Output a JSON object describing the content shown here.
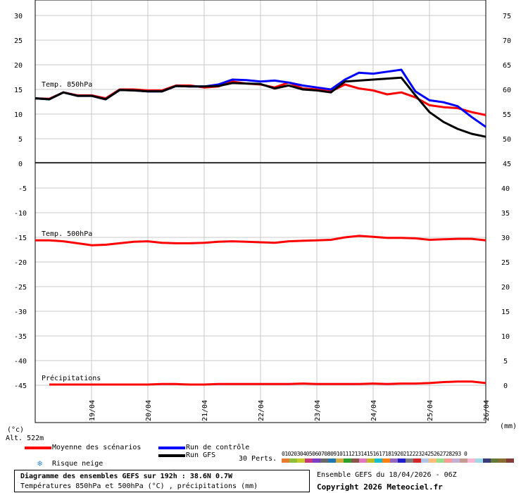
{
  "chart_data": [
    {
      "type": "line",
      "panel": "temp850",
      "title": "Temp. 850hPa",
      "ylim": [
        0,
        30
      ],
      "yticks_left": [
        0,
        5,
        10,
        15,
        20,
        25,
        30
      ],
      "yticks_right": [
        45,
        50,
        55,
        60,
        65,
        70,
        75
      ],
      "x": [
        0,
        6,
        12,
        18,
        24,
        30,
        36,
        42,
        48,
        54,
        60,
        66,
        72,
        78,
        84,
        90,
        96,
        102,
        108,
        114,
        120,
        126,
        132,
        138,
        144,
        150,
        156,
        162,
        168,
        174,
        180,
        186,
        192
      ],
      "series": [
        {
          "name": "Moyenne des scénarios",
          "color": "#ff0000",
          "width": 3,
          "values": [
            13.2,
            13.1,
            14.4,
            13.8,
            13.8,
            13.2,
            15.0,
            15.0,
            14.8,
            14.8,
            15.8,
            15.8,
            15.4,
            15.6,
            16.6,
            16.2,
            16.0,
            15.4,
            16.4,
            15.2,
            15.0,
            14.6,
            16.0,
            15.2,
            14.8,
            14.0,
            14.4,
            13.4,
            11.8,
            11.4,
            11.2,
            10.4,
            9.8
          ]
        },
        {
          "name": "Run de contrôle",
          "color": "#0000ff",
          "width": 3,
          "values": [
            13.2,
            13.0,
            14.4,
            13.7,
            13.7,
            13.0,
            14.9,
            14.8,
            14.6,
            14.6,
            15.7,
            15.6,
            15.6,
            16.0,
            17.0,
            16.9,
            16.6,
            16.8,
            16.4,
            15.8,
            15.4,
            15.0,
            17.0,
            18.4,
            18.2,
            18.6,
            19.0,
            14.6,
            12.8,
            12.4,
            11.6,
            9.4,
            7.4
          ]
        },
        {
          "name": "Run GFS",
          "color": "#000000",
          "width": 3,
          "values": [
            13.2,
            13.0,
            14.4,
            13.7,
            13.7,
            13.0,
            14.9,
            14.8,
            14.6,
            14.6,
            15.7,
            15.6,
            15.6,
            15.7,
            16.3,
            16.2,
            16.1,
            15.2,
            15.8,
            15.0,
            14.8,
            14.4,
            16.6,
            16.8,
            17.0,
            17.2,
            17.4,
            13.8,
            10.4,
            8.4,
            7.0,
            6.0,
            5.4
          ]
        }
      ]
    },
    {
      "type": "line",
      "panel": "temp500",
      "title": "Temp. 500hPa",
      "ylim": [
        -15,
        0
      ],
      "yticks_left": [
        0,
        -5,
        -10,
        -15
      ],
      "yticks_right": [
        45,
        40,
        35,
        30
      ],
      "x": [
        0,
        6,
        12,
        18,
        24,
        30,
        36,
        42,
        48,
        54,
        60,
        66,
        72,
        78,
        84,
        90,
        96,
        102,
        108,
        114,
        120,
        126,
        132,
        138,
        144,
        150,
        156,
        162,
        168,
        174,
        180,
        186,
        192
      ],
      "series": [
        {
          "name": "Moyenne des scénarios",
          "color": "#ff0000",
          "width": 3,
          "values": [
            -15.6,
            -15.6,
            -15.8,
            -16.2,
            -16.6,
            -16.5,
            -16.2,
            -15.9,
            -15.8,
            -16.1,
            -16.2,
            -16.2,
            -16.1,
            -15.9,
            -15.8,
            -15.9,
            -16.0,
            -16.1,
            -15.8,
            -15.7,
            -15.6,
            -15.5,
            -15.0,
            -14.7,
            -14.9,
            -15.1,
            -15.1,
            -15.2,
            -15.5,
            -15.4,
            -15.3,
            -15.3,
            -15.6
          ]
        }
      ]
    },
    {
      "type": "line",
      "panel": "precip",
      "title": "Précipitations",
      "ylim": [
        0,
        15
      ],
      "yticks_right": [
        0,
        5,
        10,
        15
      ],
      "x": [
        0,
        6,
        12,
        18,
        24,
        30,
        36,
        42,
        48,
        54,
        60,
        66,
        72,
        78,
        84,
        90,
        96,
        102,
        108,
        114,
        120,
        126,
        132,
        138,
        144,
        150,
        156,
        162,
        168,
        174,
        180,
        186,
        192
      ],
      "series": [
        {
          "name": "Moyenne des scénarios",
          "color": "#ff0000",
          "width": 3,
          "values": [
            0,
            0,
            0,
            0,
            0,
            0,
            0,
            0,
            0,
            0.1,
            0.1,
            0,
            0,
            0.1,
            0.1,
            0.1,
            0.1,
            0.1,
            0.1,
            0.2,
            0.1,
            0.1,
            0.1,
            0.1,
            0.2,
            0.1,
            0.2,
            0.2,
            0.3,
            0.5,
            0.6,
            0.6,
            0.3
          ]
        }
      ]
    }
  ],
  "x_axis": {
    "dates": [
      "19/04",
      "20/04",
      "21/04",
      "22/04",
      "23/04",
      "24/04",
      "25/04",
      "26/04"
    ],
    "unit_left": "(°c)",
    "unit_right": "(mm)"
  },
  "footer": {
    "alt": "Alt. 522m",
    "legend_mean": "Moyenne des scénarios",
    "legend_control": "Run de contrôle",
    "legend_gfs": "Run GFS",
    "legend_snow": "Risque neige",
    "perts_label": "30 Perts.",
    "perts_numbers": "01020304050607080910111213141516171819202122232425262728293 0",
    "title_line1": "Diagramme des ensembles GEFS sur 192h : 38.6N 0.7W",
    "title_line2": "Températures 850hPa et 500hPa (°C) , précipitations (mm)",
    "run_info": "Ensemble GEFS du 18/04/2026 - 06Z",
    "copyright": "Copyright 2026 Meteociel.fr",
    "mean_color": "#ff0000",
    "control_color": "#0000ff",
    "gfs_color": "#000000",
    "snow_color": "#3a8fd8"
  }
}
